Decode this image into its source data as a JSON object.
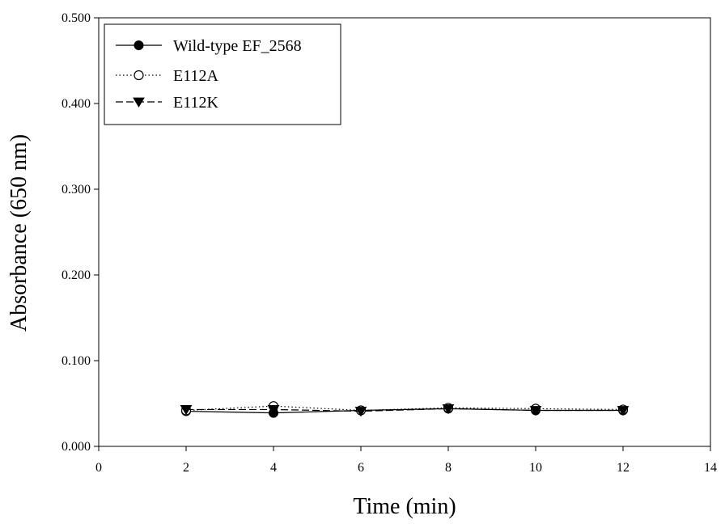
{
  "chart_data": {
    "type": "line",
    "xlabel": "Time (min)",
    "ylabel": "Absorbance (650 nm)",
    "xlim": [
      0,
      14
    ],
    "ylim": [
      0,
      0.5
    ],
    "x_ticks": [
      "0",
      "2",
      "4",
      "6",
      "8",
      "10",
      "12",
      "14"
    ],
    "y_ticks": [
      "0.000",
      "0.100",
      "0.200",
      "0.300",
      "0.400",
      "0.500"
    ],
    "grid": false,
    "legend_position": "top-left",
    "x": [
      2,
      4,
      6,
      8,
      10,
      12
    ],
    "series": [
      {
        "name": "Wild-type EF_2568",
        "marker": "filled-circle",
        "line": "solid",
        "values": [
          0.041,
          0.039,
          0.042,
          0.044,
          0.042,
          0.042
        ]
      },
      {
        "name": "E112A",
        "marker": "open-circle",
        "line": "dotted",
        "values": [
          0.042,
          0.047,
          0.042,
          0.045,
          0.044,
          0.043
        ]
      },
      {
        "name": "E112K",
        "marker": "filled-triangle-down",
        "line": "dashed",
        "values": [
          0.043,
          0.043,
          0.041,
          0.044,
          0.042,
          0.042
        ]
      }
    ]
  }
}
